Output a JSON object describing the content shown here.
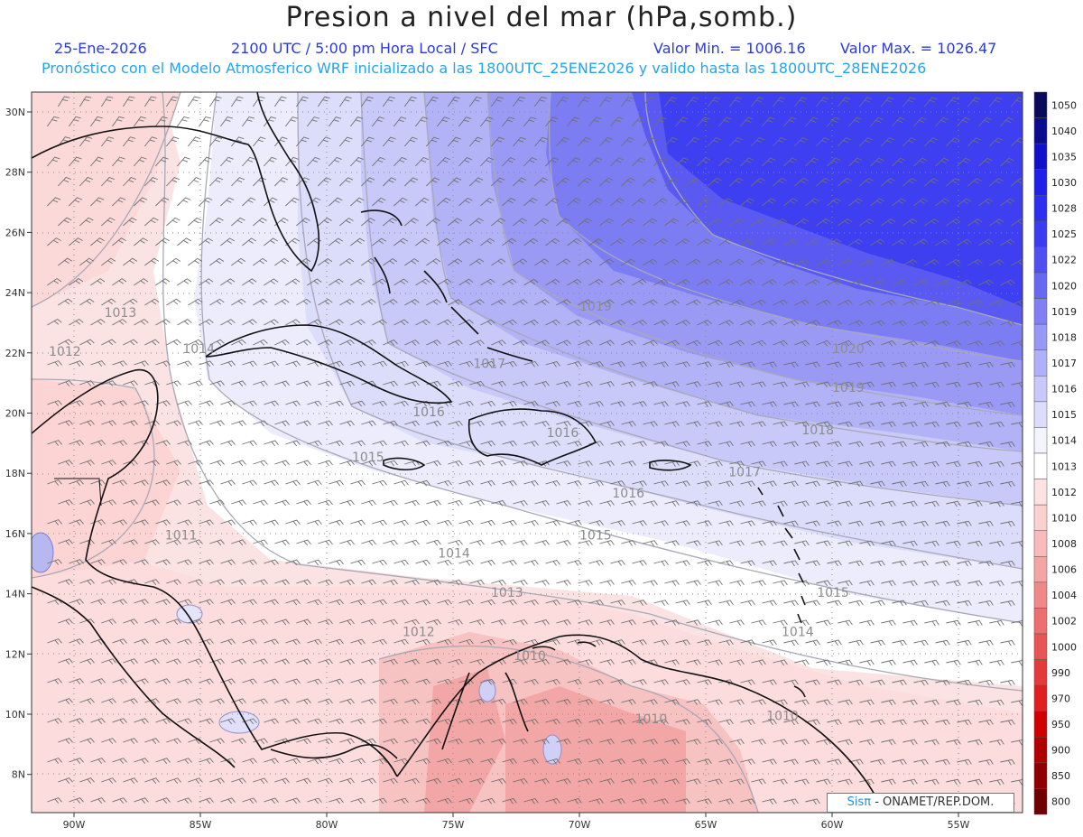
{
  "header": {
    "title": "Presion a nivel del mar (hPa,somb.)",
    "date": "25-Ene-2026",
    "time": "2100 UTC / 5:00 pm Hora Local / SFC",
    "min_label": "Valor Min. = 1006.16",
    "max_label": "Valor Max. = 1026.47",
    "model_info": "Pronóstico con el Modelo Atmosferico WRF inicializado a las 1800UTC_25ENE2026 y valido hasta las  1800UTC_28ENE2026"
  },
  "axes": {
    "lat_labels": [
      "30N",
      "28N",
      "26N",
      "24N",
      "22N",
      "20N",
      "18N",
      "16N",
      "14N",
      "12N",
      "10N",
      "8N"
    ],
    "lat_values": [
      30,
      28,
      26,
      24,
      22,
      20,
      18,
      16,
      14,
      12,
      10,
      8
    ],
    "lon_labels": [
      "90W",
      "85W",
      "80W",
      "75W",
      "70W",
      "65W",
      "60W",
      "55W"
    ],
    "lon_values": [
      -90,
      -85,
      -80,
      -75,
      -70,
      -65,
      -60,
      -55
    ]
  },
  "colorbar": {
    "levels": [
      "1050",
      "1040",
      "1035",
      "1030",
      "1028",
      "1025",
      "1022",
      "1020",
      "1019",
      "1018",
      "1017",
      "1016",
      "1015",
      "1014",
      "1013",
      "1012",
      "1010",
      "1008",
      "1006",
      "1004",
      "1002",
      "1000",
      "990",
      "970",
      "950",
      "900",
      "850",
      "800"
    ],
    "colors": [
      "#0a0a5c",
      "#0b0b8f",
      "#1010cc",
      "#1f1fe8",
      "#2e2ef0",
      "#3b3bf2",
      "#5050f2",
      "#6767f2",
      "#8080f4",
      "#9898f6",
      "#b0b0f8",
      "#c8c8fa",
      "#dcdcfc",
      "#f4f4ff",
      "#ffffff",
      "#fde2e2",
      "#fbd0d0",
      "#f8baba",
      "#f4a4a4",
      "#f08888",
      "#ec6e6e",
      "#e85454",
      "#e43a3a",
      "#e02020",
      "#d00000",
      "#b00000",
      "#900000",
      "#700000"
    ]
  },
  "isobar_labels": [
    {
      "text": "1013",
      "lon": -88.8,
      "lat": 23.2
    },
    {
      "text": "1012",
      "lon": -91.0,
      "lat": 21.9
    },
    {
      "text": "1014",
      "lon": -85.7,
      "lat": 22.0
    },
    {
      "text": "1017",
      "lon": -74.2,
      "lat": 21.5
    },
    {
      "text": "1019",
      "lon": -70.0,
      "lat": 23.4
    },
    {
      "text": "1020",
      "lon": -60.0,
      "lat": 22.0
    },
    {
      "text": "1019",
      "lon": -60.0,
      "lat": 20.7
    },
    {
      "text": "1018",
      "lon": -61.2,
      "lat": 19.3
    },
    {
      "text": "1016",
      "lon": -76.6,
      "lat": 19.9
    },
    {
      "text": "1016",
      "lon": -71.3,
      "lat": 19.2
    },
    {
      "text": "1015",
      "lon": -79.0,
      "lat": 18.4
    },
    {
      "text": "1017",
      "lon": -64.1,
      "lat": 17.9
    },
    {
      "text": "1016",
      "lon": -68.7,
      "lat": 17.2
    },
    {
      "text": "1015",
      "lon": -70.0,
      "lat": 15.8
    },
    {
      "text": "1014",
      "lon": -75.6,
      "lat": 15.2
    },
    {
      "text": "1015",
      "lon": -60.6,
      "lat": 13.9
    },
    {
      "text": "1013",
      "lon": -73.5,
      "lat": 13.9
    },
    {
      "text": "1014",
      "lon": -62.0,
      "lat": 12.6
    },
    {
      "text": "1012",
      "lon": -77.0,
      "lat": 12.6
    },
    {
      "text": "1011",
      "lon": -86.4,
      "lat": 15.8
    },
    {
      "text": "1010",
      "lon": -72.6,
      "lat": 11.8
    },
    {
      "text": "1010",
      "lon": -67.8,
      "lat": 9.7
    },
    {
      "text": "1010",
      "lon": -62.6,
      "lat": 9.8
    }
  ],
  "credit": {
    "brand": "SisPI",
    "brand_display": "Sisπ",
    "org": " - ONAMET/REP.DOM."
  }
}
